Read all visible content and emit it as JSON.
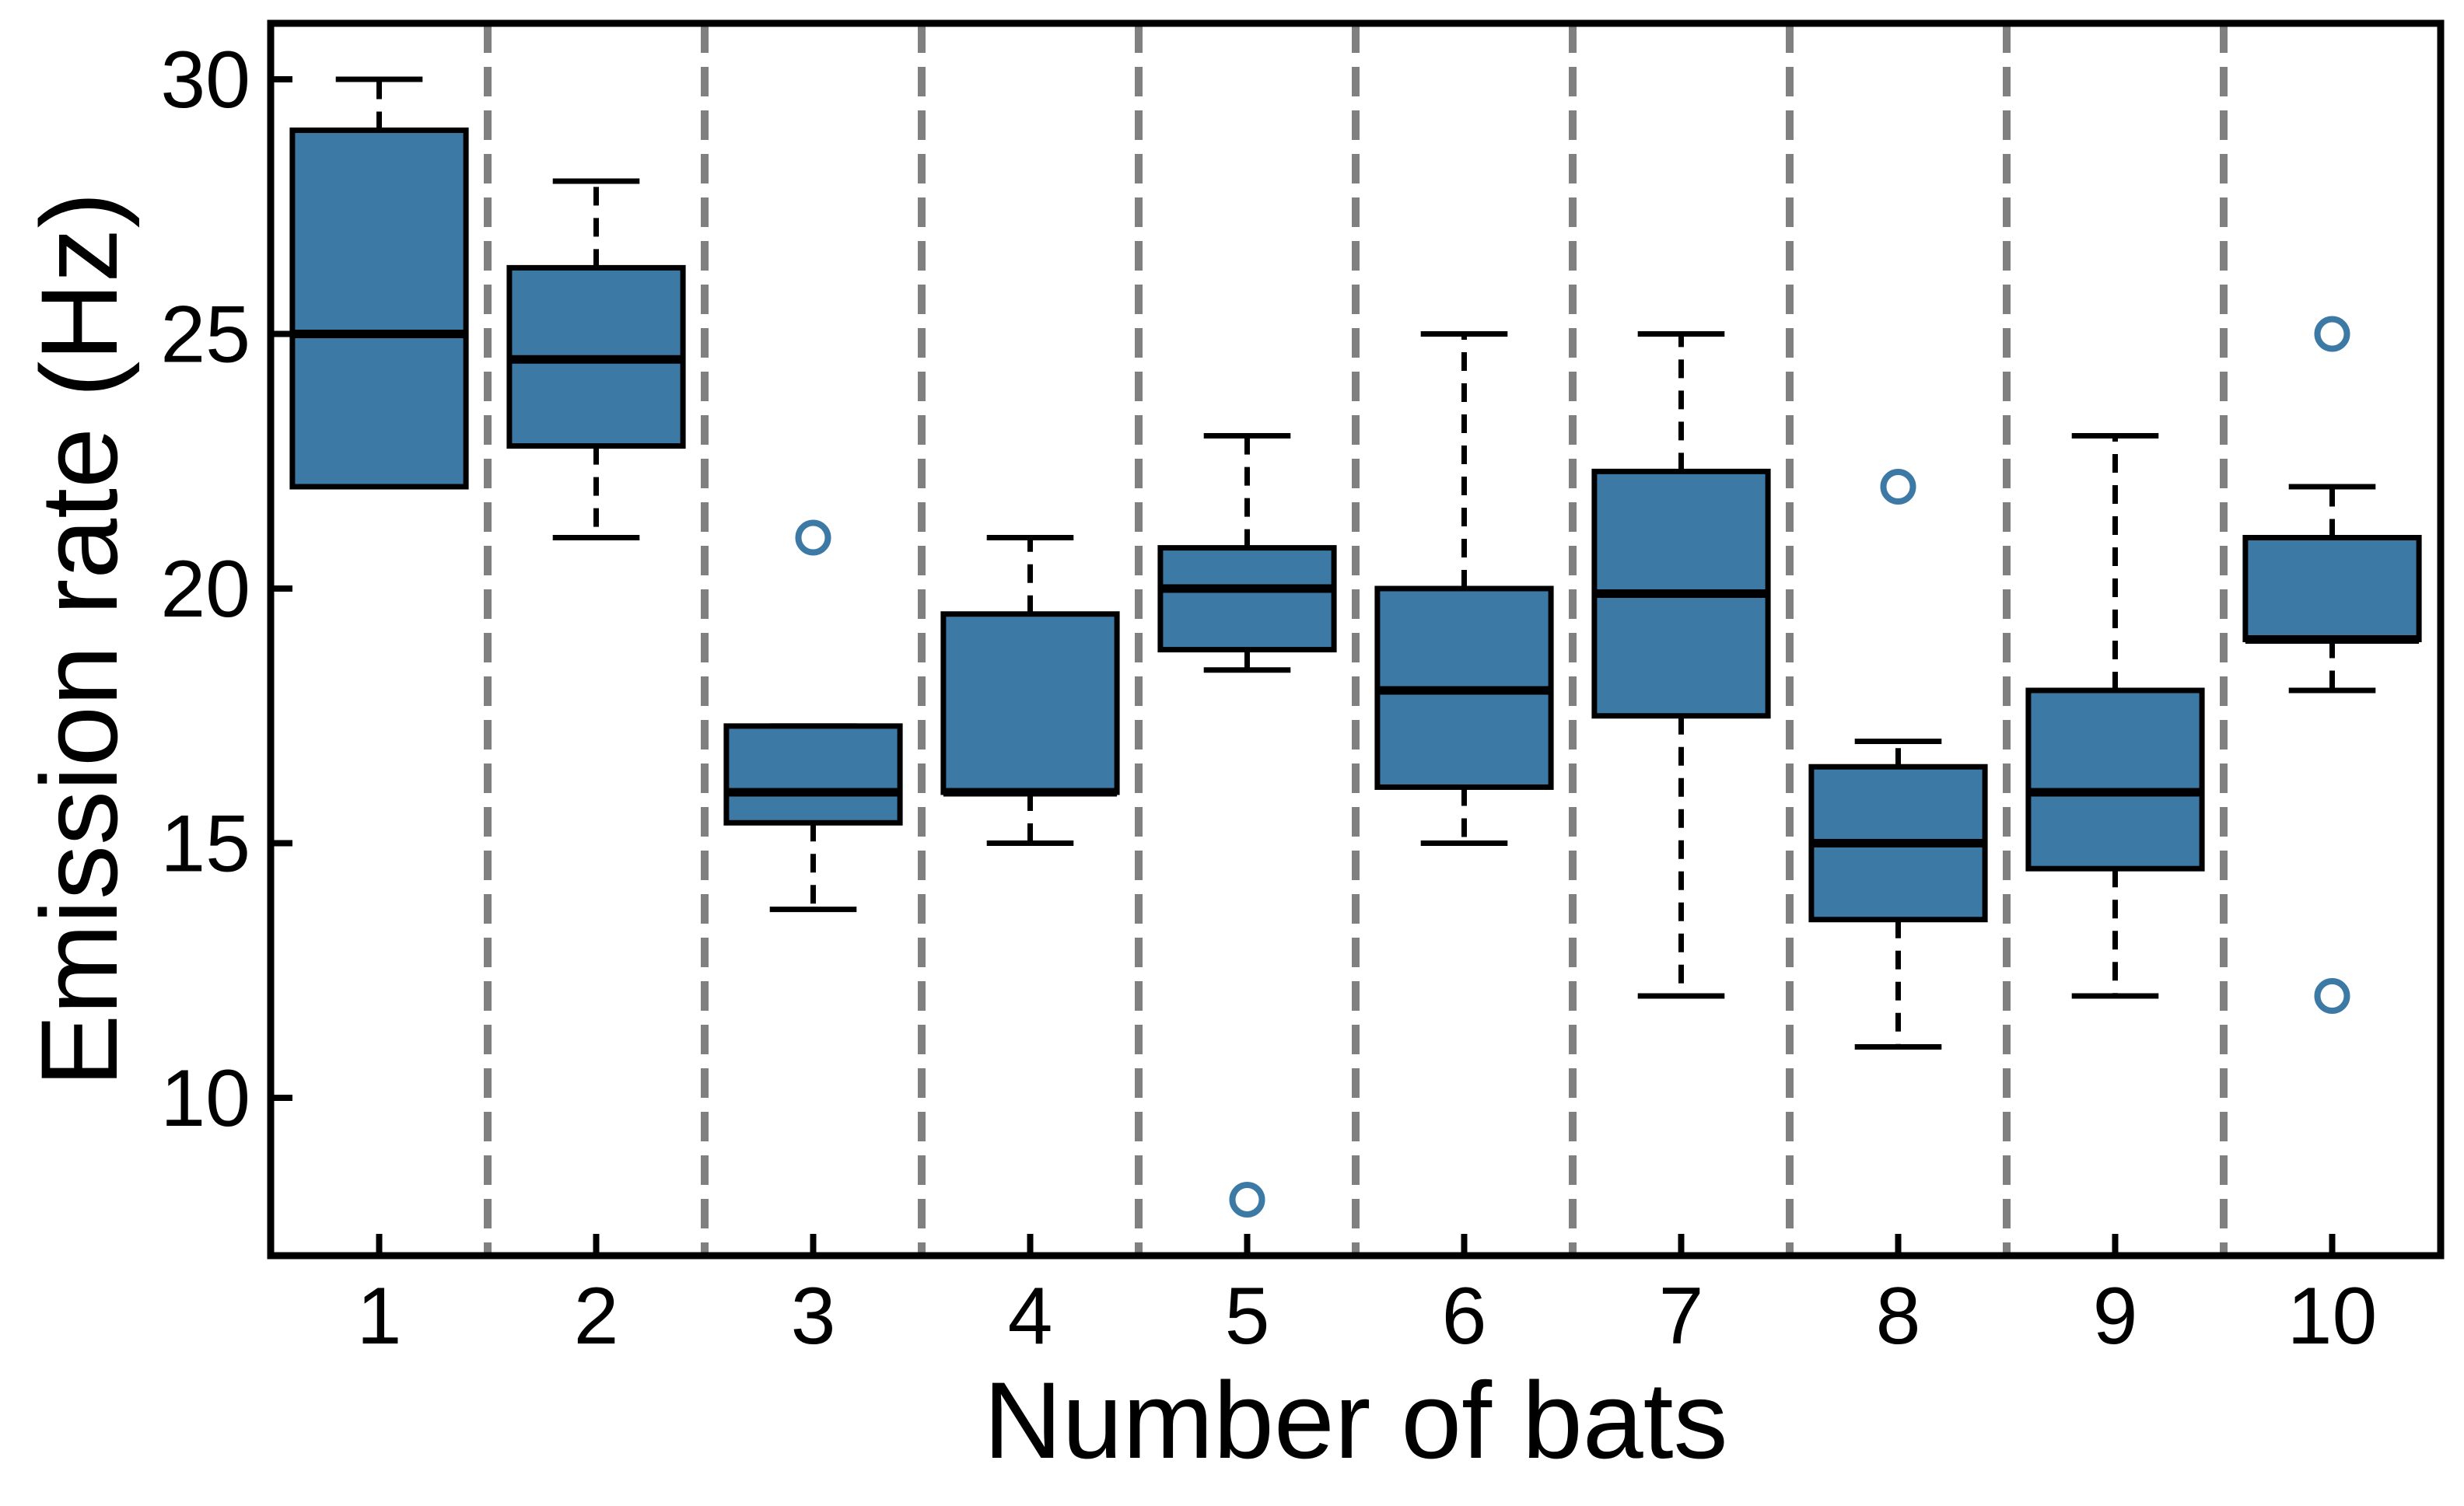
{
  "chart_data": {
    "type": "box",
    "xlabel": "Number of bats",
    "ylabel": "Emission rate (Hz)",
    "ylim": [
      6.9,
      31.1
    ],
    "yticks": [
      10,
      15,
      20,
      25,
      30
    ],
    "categories": [
      "1",
      "2",
      "3",
      "4",
      "5",
      "6",
      "7",
      "8",
      "9",
      "10"
    ],
    "grid": "vertical dashed separators between groups",
    "box_color": "#3d79a5",
    "separator_color": "#808080",
    "boxes": [
      {
        "category": "1",
        "whislo": 22,
        "q1": 22,
        "med": 25,
        "q3": 29,
        "whishi": 30,
        "fliers": []
      },
      {
        "category": "2",
        "whislo": 21,
        "q1": 22.8,
        "med": 24.5,
        "q3": 26.3,
        "whishi": 28,
        "fliers": []
      },
      {
        "category": "3",
        "whislo": 13.7,
        "q1": 15.4,
        "med": 16,
        "q3": 17.3,
        "whishi": 17.3,
        "fliers": [
          21
        ]
      },
      {
        "category": "4",
        "whislo": 15,
        "q1": 16,
        "med": 16,
        "q3": 19.5,
        "whishi": 21,
        "fliers": []
      },
      {
        "category": "5",
        "whislo": 18.4,
        "q1": 18.8,
        "med": 20,
        "q3": 20.8,
        "whishi": 23,
        "fliers": [
          8
        ]
      },
      {
        "category": "6",
        "whislo": 15,
        "q1": 16.1,
        "med": 18,
        "q3": 20,
        "whishi": 25,
        "fliers": []
      },
      {
        "category": "7",
        "whislo": 12,
        "q1": 17.5,
        "med": 19.9,
        "q3": 22.3,
        "whishi": 25,
        "fliers": []
      },
      {
        "category": "8",
        "whislo": 11,
        "q1": 13.5,
        "med": 15,
        "q3": 16.5,
        "whishi": 17,
        "fliers": [
          22
        ]
      },
      {
        "category": "9",
        "whislo": 12,
        "q1": 14.5,
        "med": 16,
        "q3": 18,
        "whishi": 23,
        "fliers": []
      },
      {
        "category": "10",
        "whislo": 18,
        "q1": 19,
        "med": 19,
        "q3": 21,
        "whishi": 22,
        "fliers": [
          25,
          12
        ]
      }
    ]
  }
}
